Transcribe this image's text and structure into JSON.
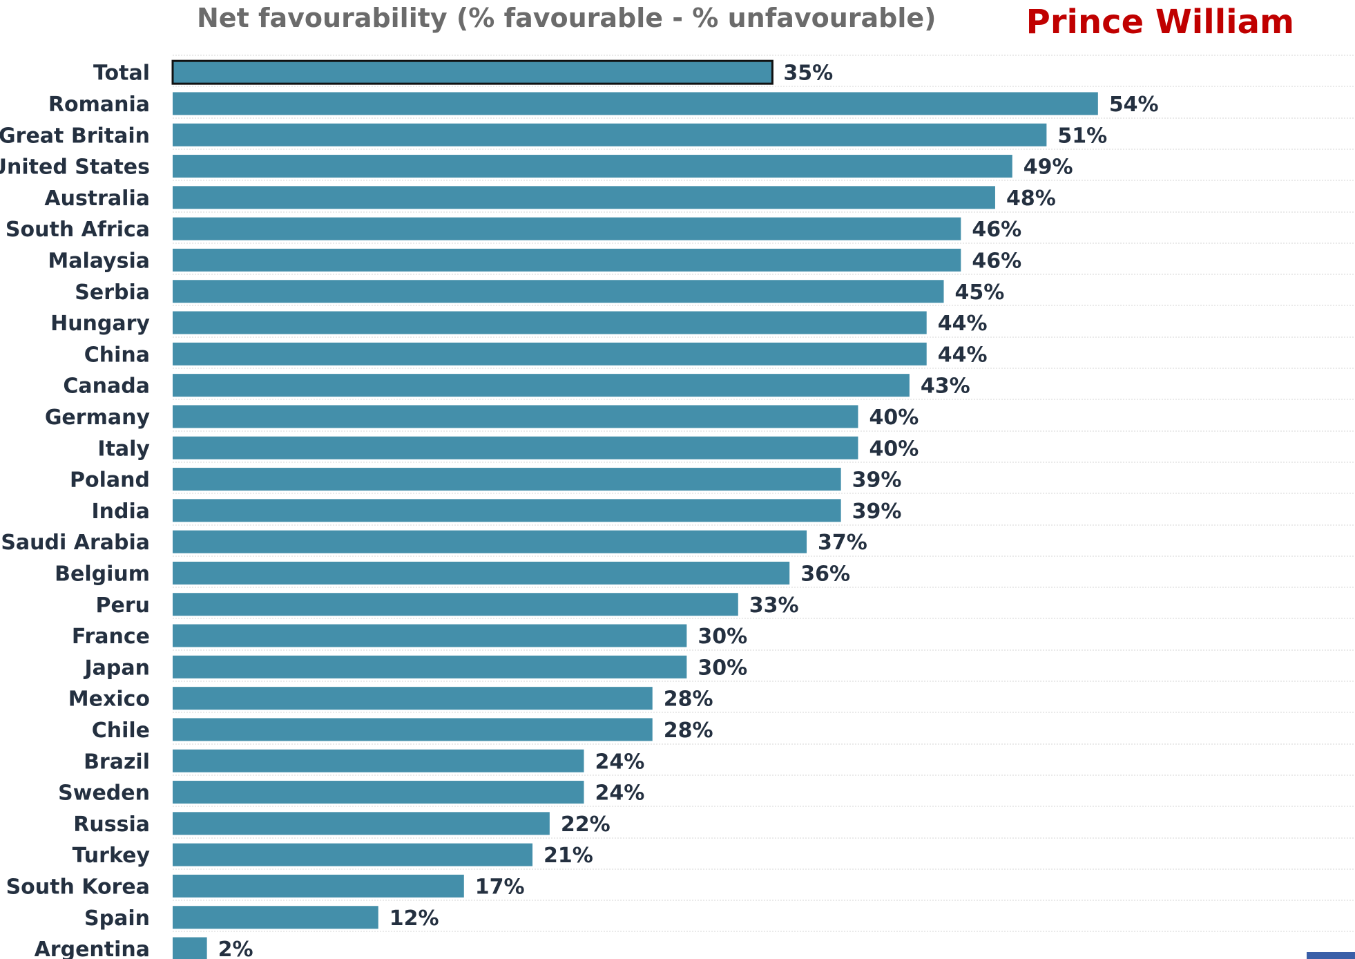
{
  "header": {
    "title": "Net favourability (% favourable - % unfavourable)",
    "subject": "Prince William"
  },
  "colors": {
    "bar": "#448faa",
    "highlight_border": "#111111",
    "subject_text": "#c00000",
    "gridline": "#d4d4d4"
  },
  "chart_data": {
    "type": "bar",
    "orientation": "horizontal",
    "title": "Net favourability (% favourable - % unfavourable)",
    "subtitle": "Prince William",
    "categories": [
      "Total",
      "Romania",
      "Great Britain",
      "United States",
      "Australia",
      "South Africa",
      "Malaysia",
      "Serbia",
      "Hungary",
      "China",
      "Canada",
      "Germany",
      "Italy",
      "Poland",
      "India",
      "Saudi Arabia",
      "Belgium",
      "Peru",
      "France",
      "Japan",
      "Mexico",
      "Chile",
      "Brazil",
      "Sweden",
      "Russia",
      "Turkey",
      "South Korea",
      "Spain",
      "Argentina"
    ],
    "values": [
      35,
      54,
      51,
      49,
      48,
      46,
      46,
      45,
      44,
      44,
      43,
      40,
      40,
      39,
      39,
      37,
      36,
      33,
      30,
      30,
      28,
      28,
      24,
      24,
      22,
      21,
      17,
      12,
      2
    ],
    "labels": [
      "35%",
      "54%",
      "51%",
      "49%",
      "48%",
      "46%",
      "46%",
      "45%",
      "44%",
      "44%",
      "43%",
      "40%",
      "40%",
      "39%",
      "39%",
      "37%",
      "36%",
      "33%",
      "30%",
      "30%",
      "28%",
      "28%",
      "24%",
      "24%",
      "22%",
      "21%",
      "17%",
      "12%",
      "2%"
    ],
    "highlighted_category": "Total",
    "value_unit": "%",
    "xlim": [
      0,
      69
    ]
  }
}
